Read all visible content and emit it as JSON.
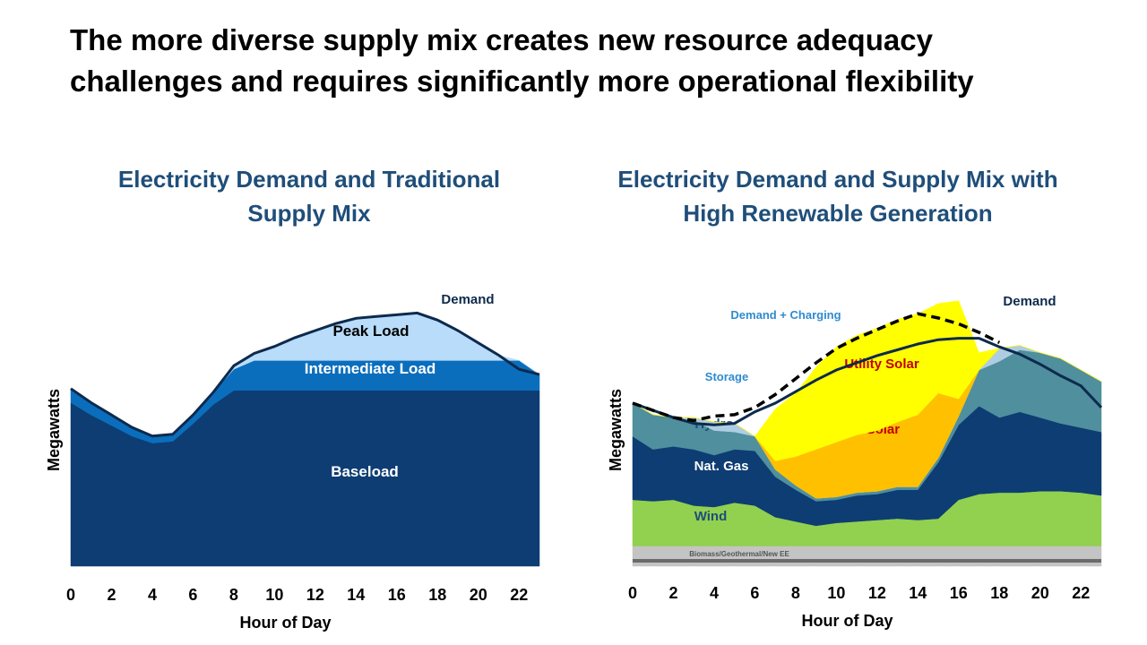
{
  "headline": {
    "line1": "The more diverse supply mix creates new resource adequacy",
    "line2": "challenges and requires significantly more operational flexibility"
  },
  "chart_data": [
    {
      "type": "area",
      "stacked": true,
      "title_line1": "Electricity Demand and Traditional",
      "title_line2": "Supply Mix",
      "xlabel": "Hour of Day",
      "ylabel": "Megawatts",
      "x_ticks": [
        0,
        2,
        4,
        6,
        8,
        10,
        12,
        14,
        16,
        18,
        20,
        22
      ],
      "x_range": [
        0,
        23
      ],
      "grid": false,
      "x": [
        0,
        1,
        2,
        3,
        4,
        5,
        6,
        7,
        8,
        9,
        10,
        11,
        12,
        13,
        14,
        15,
        16,
        17,
        18,
        19,
        20,
        21,
        22,
        23
      ],
      "demand_label": "Demand",
      "series": [
        {
          "name": "Baseload",
          "color": "#0d3d73",
          "values": [
            93,
            86,
            80,
            74,
            70,
            71,
            81,
            92,
            100,
            100,
            100,
            100,
            100,
            100,
            100,
            100,
            100,
            100,
            100,
            100,
            100,
            100,
            100,
            100
          ]
        },
        {
          "name": "Intermediate Load",
          "color": "#0a6ebd",
          "values": [
            8,
            7,
            6,
            5,
            4,
            4,
            5,
            7,
            12,
            17,
            17,
            17,
            17,
            17,
            17,
            17,
            17,
            17,
            17,
            17,
            17,
            17,
            17,
            9
          ]
        },
        {
          "name": "Peak Load",
          "color": "#b8dcfa",
          "values": [
            0,
            0,
            0,
            0,
            0,
            0,
            0,
            0,
            2,
            4,
            8,
            13,
            17,
            21,
            24,
            25,
            26,
            27,
            23,
            17,
            10,
            3,
            0,
            0
          ]
        }
      ],
      "demand": [
        101,
        93,
        86,
        79,
        74,
        75,
        86,
        99,
        114,
        121,
        125,
        130,
        134,
        138,
        141,
        142,
        143,
        144,
        140,
        134,
        127,
        120,
        112,
        109
      ]
    },
    {
      "type": "area",
      "stacked": true,
      "title_line1": "Electricity Demand and Supply Mix with",
      "title_line2": "High Renewable Generation",
      "xlabel": "Hour of Day",
      "ylabel": "Megawatts",
      "x_ticks": [
        0,
        2,
        4,
        6,
        8,
        10,
        12,
        14,
        16,
        18,
        20,
        22
      ],
      "x_range": [
        0,
        23
      ],
      "grid": false,
      "x": [
        0,
        1,
        2,
        3,
        4,
        5,
        6,
        7,
        8,
        9,
        10,
        11,
        12,
        13,
        14,
        15,
        16,
        17,
        18,
        19,
        20,
        21,
        22,
        23
      ],
      "demand_label": "Demand",
      "demand_charging_label": "Demand + Charging",
      "series": [
        {
          "name": "Biomass/Geothermal/New EE",
          "color": "#c4c4c4",
          "values": [
            14,
            14,
            14,
            14,
            14,
            14,
            14,
            14,
            14,
            14,
            14,
            14,
            14,
            14,
            14,
            14,
            14,
            14,
            14,
            14,
            14,
            14,
            14,
            14
          ]
        },
        {
          "name": "Wind",
          "color": "#92d050",
          "values": [
            32,
            31,
            32,
            28,
            27,
            30,
            28,
            20,
            17,
            14,
            16,
            17,
            18,
            19,
            18,
            19,
            32,
            36,
            37,
            37,
            38,
            38,
            37,
            35
          ]
        },
        {
          "name": "Nat. Gas",
          "color": "#0d3d73",
          "values": [
            44,
            36,
            37,
            39,
            36,
            37,
            38,
            28,
            22,
            17,
            16,
            18,
            18,
            20,
            21,
            39,
            52,
            61,
            52,
            56,
            51,
            47,
            45,
            44
          ]
        },
        {
          "name": "Hydro",
          "color": "#4f8f9e",
          "values": [
            23,
            24,
            20,
            20,
            17,
            12,
            10,
            5,
            3,
            2,
            2,
            2,
            2,
            2,
            2,
            3,
            6,
            25,
            39,
            43,
            45,
            45,
            40,
            35
          ]
        },
        {
          "name": "Storage",
          "color": "#aecde3",
          "values": [
            0,
            0,
            0,
            2,
            6,
            6,
            0,
            0,
            0,
            0,
            0,
            0,
            0,
            0,
            0,
            0,
            0,
            0,
            9,
            3,
            0,
            0,
            0,
            0
          ]
        },
        {
          "name": "Dist. Solar",
          "color": "#ffc000",
          "values": [
            0,
            0,
            0,
            0,
            0,
            0,
            0,
            6,
            20,
            34,
            38,
            40,
            42,
            45,
            50,
            45,
            12,
            0,
            0,
            0,
            0,
            0,
            0,
            0
          ]
        },
        {
          "name": "Utility Solar",
          "color": "#ffff00",
          "values": [
            0,
            0,
            0,
            0,
            0,
            0,
            0,
            36,
            44,
            57,
            66,
            69,
            71,
            71,
            70,
            62,
            68,
            12,
            0,
            0,
            0,
            0,
            0,
            0
          ]
        }
      ],
      "demand": [
        113,
        108,
        103,
        99,
        98,
        99,
        107,
        113,
        121,
        129,
        136,
        141,
        146,
        150,
        154,
        157,
        158,
        158,
        152,
        147,
        140,
        132,
        125,
        110
      ],
      "demand_charging": [
        113,
        108,
        103,
        101,
        104,
        105,
        110,
        119,
        130,
        141,
        151,
        158,
        164,
        170,
        175,
        172,
        168,
        162,
        155,
        null,
        null,
        null,
        null,
        null
      ]
    }
  ]
}
